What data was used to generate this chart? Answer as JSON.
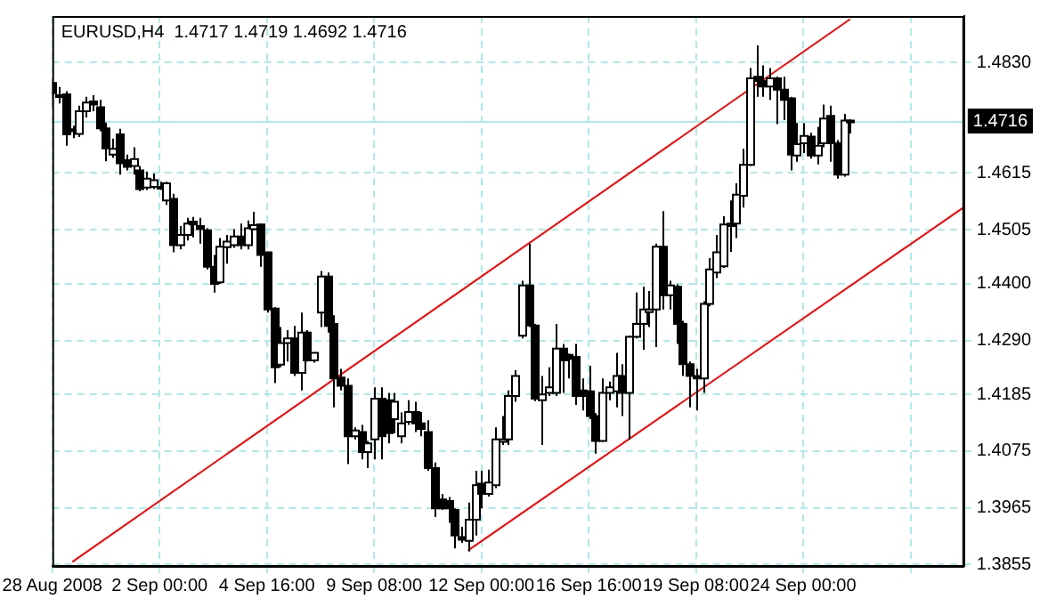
{
  "chart_data": {
    "type": "candlestick",
    "title": "EURUSD,H4  1.4717 1.4719 1.4692 1.4716",
    "categories": [
      "28 Aug 2008",
      null,
      null,
      null,
      null,
      null,
      null,
      null,
      null,
      null,
      null,
      null,
      null,
      null,
      null,
      null,
      "2 Sep 00:00",
      null,
      null,
      null,
      null,
      null,
      null,
      null,
      null,
      null,
      null,
      null,
      null,
      null,
      null,
      null,
      "4 Sep 16:00",
      null,
      null,
      null,
      null,
      null,
      null,
      null,
      null,
      null,
      null,
      null,
      null,
      null,
      null,
      null,
      "9 Sep 08:00",
      null,
      null,
      null,
      null,
      null,
      null,
      null,
      null,
      null,
      null,
      null,
      null,
      null,
      null,
      null,
      "12 Sep 00:00",
      null,
      null,
      null,
      null,
      null,
      null,
      null,
      null,
      null,
      null,
      null,
      null,
      null,
      null,
      null,
      "16 Sep 16:00",
      null,
      null,
      null,
      null,
      null,
      null,
      null,
      null,
      null,
      null,
      null,
      null,
      null,
      null,
      null,
      "19 Sep 08:00",
      null,
      null,
      null,
      null,
      null,
      null,
      null,
      null,
      null,
      null,
      null,
      null,
      null,
      null,
      null,
      "24 Sep 00:00",
      null,
      null,
      null,
      null,
      null,
      null,
      null,
      null,
      null,
      null,
      null,
      null,
      null,
      null,
      null,
      null,
      null,
      null,
      null,
      null,
      null,
      null,
      null,
      null
    ],
    "ohlc": [
      [
        1.479,
        1.48,
        1.4745,
        1.477
      ],
      [
        1.4766,
        1.4782,
        1.475,
        1.4766
      ],
      [
        1.4768,
        1.4774,
        1.4668,
        1.469
      ],
      [
        1.47,
        1.4707,
        1.4683,
        1.4696
      ],
      [
        1.4691,
        1.4746,
        1.4685,
        1.4735
      ],
      [
        1.4735,
        1.4763,
        1.4723,
        1.4752
      ],
      [
        1.4754,
        1.4766,
        1.4735,
        1.4748
      ],
      [
        1.4743,
        1.4757,
        1.4696,
        1.4702
      ],
      [
        1.4702,
        1.4713,
        1.4638,
        1.4663
      ],
      [
        1.4651,
        1.4682,
        1.4645,
        1.4662
      ],
      [
        1.469,
        1.4701,
        1.4612,
        1.4634
      ],
      [
        1.464,
        1.4651,
        1.462,
        1.4627
      ],
      [
        1.4629,
        1.4665,
        1.4612,
        1.4642
      ],
      [
        1.462,
        1.4629,
        1.458,
        1.4584
      ],
      [
        1.4587,
        1.4618,
        1.4582,
        1.4604
      ],
      [
        1.4588,
        1.4614,
        1.4584,
        1.4601
      ],
      [
        1.4588,
        1.4598,
        1.4582,
        1.4585
      ],
      [
        1.4562,
        1.4598,
        1.4553,
        1.4595
      ],
      [
        1.4565,
        1.4575,
        1.4461,
        1.4475
      ],
      [
        1.4475,
        1.4512,
        1.4467,
        1.4495
      ],
      [
        1.4495,
        1.4528,
        1.4484,
        1.4517
      ],
      [
        1.4521,
        1.453,
        1.449,
        1.4515
      ],
      [
        1.4512,
        1.4528,
        1.4478,
        1.4506
      ],
      [
        1.4504,
        1.4508,
        1.4428,
        1.4433
      ],
      [
        1.4433,
        1.4456,
        1.4383,
        1.44
      ],
      [
        1.4403,
        1.4489,
        1.44,
        1.4472
      ],
      [
        1.4471,
        1.4495,
        1.4439,
        1.4482
      ],
      [
        1.4475,
        1.4506,
        1.447,
        1.4492
      ],
      [
        1.4492,
        1.4517,
        1.4467,
        1.4475
      ],
      [
        1.4475,
        1.4523,
        1.4467,
        1.4508
      ],
      [
        1.4506,
        1.454,
        1.4504,
        1.4514
      ],
      [
        1.4515,
        1.4517,
        1.4433,
        1.4456
      ],
      [
        1.4461,
        1.4461,
        1.4344,
        1.435
      ],
      [
        1.4352,
        1.4355,
        1.4207,
        1.4238
      ],
      [
        1.4243,
        1.4316,
        1.4238,
        1.4285
      ],
      [
        1.4285,
        1.431,
        1.4249,
        1.4294
      ],
      [
        1.4294,
        1.4318,
        1.4221,
        1.4227
      ],
      [
        1.4227,
        1.4344,
        1.4193,
        1.4305
      ],
      [
        1.4305,
        1.431,
        1.4249,
        1.4251
      ],
      [
        1.4251,
        1.4266,
        1.4247,
        1.4266
      ],
      [
        1.4344,
        1.4425,
        1.4316,
        1.4414
      ],
      [
        1.4414,
        1.4422,
        1.4305,
        1.4318
      ],
      [
        1.4322,
        1.4339,
        1.416,
        1.4216
      ],
      [
        1.4218,
        1.4235,
        1.4193,
        1.4202
      ],
      [
        1.4202,
        1.4216,
        1.405,
        1.4104
      ],
      [
        1.4104,
        1.4121,
        1.4098,
        1.4115
      ],
      [
        1.4112,
        1.4126,
        1.4059,
        1.4073
      ],
      [
        1.4073,
        1.4095,
        1.4042,
        1.409
      ],
      [
        1.4098,
        1.4199,
        1.4059,
        1.4177
      ],
      [
        1.4177,
        1.4199,
        1.4059,
        1.4104
      ],
      [
        1.4174,
        1.4188,
        1.409,
        1.411
      ],
      [
        1.4137,
        1.4188,
        1.411,
        1.4171
      ],
      [
        1.4104,
        1.415,
        1.409,
        1.4129
      ],
      [
        1.4132,
        1.4174,
        1.4126,
        1.4151
      ],
      [
        1.4151,
        1.4171,
        1.4112,
        1.4129
      ],
      [
        1.4129,
        1.4151,
        1.4104,
        1.4118
      ],
      [
        1.4112,
        1.4135,
        1.4037,
        1.4042
      ],
      [
        1.4042,
        1.4053,
        1.3947,
        1.3964
      ],
      [
        1.3981,
        1.3992,
        1.3961,
        1.3964
      ],
      [
        1.3978,
        1.3986,
        1.3936,
        1.3964
      ],
      [
        1.3961,
        1.3964,
        1.3886,
        1.3911
      ],
      [
        1.3908,
        1.3928,
        1.3897,
        1.3903
      ],
      [
        1.3901,
        1.3975,
        1.388,
        1.3942
      ],
      [
        1.3942,
        1.4037,
        1.3911,
        1.4009
      ],
      [
        1.4012,
        1.4037,
        1.3964,
        1.3992
      ],
      [
        1.3992,
        1.4039,
        1.3987,
        1.4014
      ],
      [
        1.4009,
        1.4121,
        1.4003,
        1.4098
      ],
      [
        1.4093,
        1.4143,
        1.4087,
        1.4098
      ],
      [
        1.4098,
        1.4193,
        1.4087,
        1.4182
      ],
      [
        1.4182,
        1.4232,
        1.4171,
        1.4221
      ],
      [
        1.4299,
        1.4406,
        1.4294,
        1.4397
      ],
      [
        1.4397,
        1.4478,
        1.4316,
        1.4319
      ],
      [
        1.4319,
        1.4322,
        1.4172,
        1.4177
      ],
      [
        1.4174,
        1.4221,
        1.4087,
        1.4185
      ],
      [
        1.4188,
        1.4238,
        1.4182,
        1.4199
      ],
      [
        1.4188,
        1.4322,
        1.4182,
        1.4274
      ],
      [
        1.4274,
        1.4283,
        1.4188,
        1.4251
      ],
      [
        1.4262,
        1.4264,
        1.4216,
        1.4254
      ],
      [
        1.4258,
        1.4283,
        1.4165,
        1.4182
      ],
      [
        1.4193,
        1.4216,
        1.4154,
        1.4182
      ],
      [
        1.4191,
        1.4241,
        1.4137,
        1.4143
      ],
      [
        1.4143,
        1.4149,
        1.407,
        1.4095
      ],
      [
        1.4095,
        1.4216,
        1.4093,
        1.4188
      ],
      [
        1.4188,
        1.421,
        1.4174,
        1.4199
      ],
      [
        1.4191,
        1.4266,
        1.416,
        1.4221
      ],
      [
        1.4221,
        1.4244,
        1.4143,
        1.4188
      ],
      [
        1.4188,
        1.4299,
        1.4098,
        1.4297
      ],
      [
        1.4297,
        1.4383,
        1.4294,
        1.4322
      ],
      [
        1.4322,
        1.4394,
        1.4272,
        1.435
      ],
      [
        1.4345,
        1.4386,
        1.4316,
        1.435
      ],
      [
        1.435,
        1.4478,
        1.4277,
        1.4472
      ],
      [
        1.4472,
        1.4541,
        1.435,
        1.4378
      ],
      [
        1.4378,
        1.4406,
        1.435,
        1.4397
      ],
      [
        1.4394,
        1.4399,
        1.4283,
        1.4322
      ],
      [
        1.4322,
        1.4328,
        1.4221,
        1.4244
      ],
      [
        1.4244,
        1.4249,
        1.416,
        1.4221
      ],
      [
        1.4221,
        1.4235,
        1.4154,
        1.4216
      ],
      [
        1.4216,
        1.4366,
        1.4188,
        1.4361
      ],
      [
        1.4361,
        1.445,
        1.4356,
        1.4428
      ],
      [
        1.4422,
        1.4495,
        1.4411,
        1.4461
      ],
      [
        1.4434,
        1.4531,
        1.4431,
        1.4515
      ],
      [
        1.4517,
        1.4562,
        1.4462,
        1.4512
      ],
      [
        1.4517,
        1.4595,
        1.4489,
        1.4573
      ],
      [
        1.4571,
        1.4662,
        1.4548,
        1.4631
      ],
      [
        1.4631,
        1.4819,
        1.4629,
        1.4799
      ],
      [
        1.4802,
        1.4863,
        1.4763,
        1.4794
      ],
      [
        1.4794,
        1.4824,
        1.4763,
        1.4783
      ],
      [
        1.4783,
        1.4819,
        1.4757,
        1.4799
      ],
      [
        1.4799,
        1.4802,
        1.471,
        1.4777
      ],
      [
        1.4777,
        1.4802,
        1.4718,
        1.4757
      ],
      [
        1.476,
        1.4763,
        1.462,
        1.4651
      ],
      [
        1.4649,
        1.4712,
        1.4637,
        1.4671
      ],
      [
        1.4673,
        1.4712,
        1.4654,
        1.4687
      ],
      [
        1.4686,
        1.4693,
        1.4643,
        1.4649
      ],
      [
        1.4649,
        1.4705,
        1.4632,
        1.4668
      ],
      [
        1.4673,
        1.4748,
        1.4665,
        1.4721
      ],
      [
        1.4726,
        1.4746,
        1.4637,
        1.4673
      ],
      [
        1.4673,
        1.4679,
        1.4604,
        1.4612
      ],
      [
        1.4612,
        1.473,
        1.4608,
        1.4717
      ],
      [
        1.4717,
        1.4719,
        1.4692,
        1.4716
      ],
      null,
      null,
      null,
      null,
      null,
      null,
      null,
      null,
      null,
      null,
      null,
      null,
      null,
      null,
      null,
      null,
      null
    ],
    "series": [
      {
        "type": "line",
        "color": "#ff0000",
        "values": [
          null,
          null,
          null,
          1.386,
          null,
          null,
          null,
          null,
          null,
          null,
          null,
          null,
          null,
          null,
          null,
          null,
          null,
          null,
          null,
          null,
          null,
          null,
          null,
          null,
          null,
          null,
          null,
          null,
          null,
          null,
          null,
          null,
          null,
          null,
          null,
          null,
          null,
          null,
          null,
          null,
          null,
          null,
          null,
          null,
          null,
          null,
          null,
          null,
          null,
          null,
          null,
          null,
          null,
          null,
          null,
          null,
          null,
          null,
          null,
          null,
          null,
          null,
          null,
          null,
          null,
          null,
          null,
          null,
          null,
          null,
          null,
          null,
          null,
          null,
          null,
          null,
          null,
          null,
          null,
          null,
          null,
          null,
          null,
          null,
          null,
          null,
          null,
          null,
          null,
          null,
          null,
          null,
          null,
          null,
          null,
          null,
          null,
          null,
          null,
          null,
          null,
          null,
          null,
          null,
          null,
          null,
          null,
          null,
          null,
          null,
          null,
          null,
          null,
          null,
          null,
          null,
          null,
          null,
          null,
          1.4914,
          null,
          null,
          null,
          null,
          null,
          null,
          null,
          null,
          null,
          null,
          null,
          null,
          null,
          null,
          null,
          null,
          null
        ]
      },
      {
        "type": "line",
        "color": "#ff0000",
        "values": [
          null,
          null,
          null,
          null,
          null,
          null,
          null,
          null,
          null,
          null,
          null,
          null,
          null,
          null,
          null,
          null,
          null,
          null,
          null,
          null,
          null,
          null,
          null,
          null,
          null,
          null,
          null,
          null,
          null,
          null,
          null,
          null,
          null,
          null,
          null,
          null,
          null,
          null,
          null,
          null,
          null,
          null,
          null,
          null,
          null,
          null,
          null,
          null,
          null,
          null,
          null,
          null,
          null,
          null,
          null,
          null,
          null,
          null,
          null,
          null,
          null,
          null,
          1.3882,
          null,
          null,
          null,
          null,
          null,
          null,
          null,
          null,
          null,
          null,
          null,
          null,
          null,
          null,
          null,
          null,
          null,
          null,
          null,
          null,
          null,
          null,
          null,
          null,
          null,
          null,
          null,
          null,
          null,
          null,
          null,
          null,
          null,
          null,
          null,
          null,
          null,
          null,
          null,
          null,
          null,
          null,
          null,
          null,
          null,
          null,
          null,
          null,
          null,
          null,
          null,
          null,
          null,
          null,
          null,
          null,
          null,
          null,
          null,
          null,
          null,
          null,
          null,
          null,
          null,
          null,
          null,
          null,
          null,
          null,
          null,
          null,
          null,
          1.4549
        ]
      }
    ],
    "ylim": [
      1.3852,
      1.492
    ],
    "yticks": [
      {
        "value": 1.3855,
        "label": "1.3855"
      },
      {
        "value": 1.3965,
        "label": "1.3965"
      },
      {
        "value": 1.4075,
        "label": "1.4075"
      },
      {
        "value": 1.4185,
        "label": "1.4185"
      },
      {
        "value": 1.429,
        "label": "1.4290"
      },
      {
        "value": 1.44,
        "label": "1.4400"
      },
      {
        "value": 1.4505,
        "label": "1.4505"
      },
      {
        "value": 1.4615,
        "label": "1.4615"
      },
      {
        "value": 1.483,
        "label": "1.4830"
      }
    ],
    "ref_lines": [
      {
        "axis": "y",
        "value": 1.4716,
        "label": "1.4716",
        "color": "#aeeaea"
      }
    ],
    "grid": true,
    "legend": false,
    "marker": "none",
    "line_style": "solid"
  }
}
